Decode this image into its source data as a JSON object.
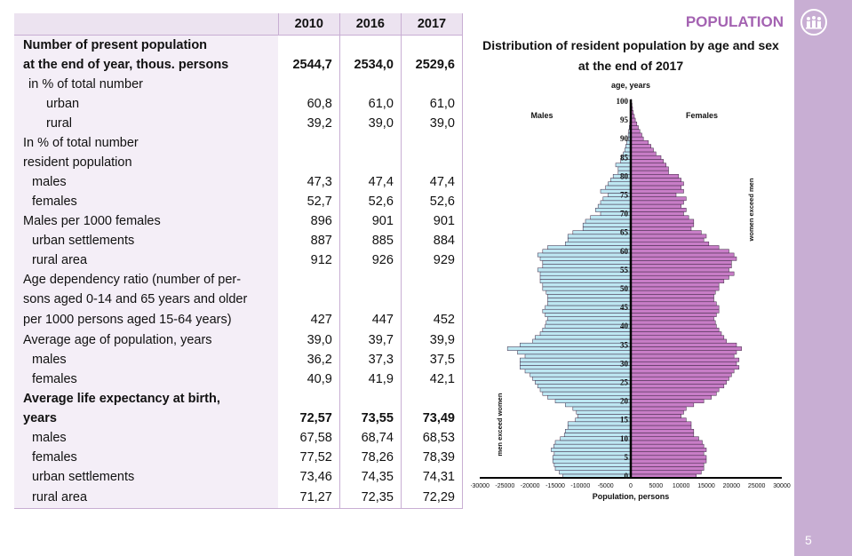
{
  "section_title": "POPULATION",
  "page_number": "5",
  "table": {
    "header": [
      "",
      "2010",
      "2016",
      "2017"
    ],
    "rows": [
      {
        "label": "Number of present population",
        "values": [
          "",
          "",
          ""
        ],
        "bold": true,
        "indent": 0
      },
      {
        "label": "at the end of year, thous. persons",
        "values": [
          "2544,7",
          "2534,0",
          "2529,6"
        ],
        "bold": true,
        "indent": 0
      },
      {
        "label": "in % of total number",
        "values": [
          "",
          "",
          ""
        ],
        "bold": false,
        "indent": 1
      },
      {
        "label": "urban",
        "values": [
          "60,8",
          "61,0",
          "61,0"
        ],
        "bold": false,
        "indent": 3
      },
      {
        "label": "rural",
        "values": [
          "39,2",
          "39,0",
          "39,0"
        ],
        "bold": false,
        "indent": 3
      },
      {
        "label": "In % of total number",
        "values": [
          "",
          "",
          ""
        ],
        "bold": false,
        "indent": 0
      },
      {
        "label": "resident population",
        "values": [
          "",
          "",
          ""
        ],
        "bold": false,
        "indent": 0
      },
      {
        "label": "males",
        "values": [
          "47,3",
          "47,4",
          "47,4"
        ],
        "bold": false,
        "indent": 2
      },
      {
        "label": "females",
        "values": [
          "52,7",
          "52,6",
          "52,6"
        ],
        "bold": false,
        "indent": 2
      },
      {
        "label": "Males per 1000 females",
        "values": [
          "896",
          "901",
          "901"
        ],
        "bold": false,
        "indent": 0
      },
      {
        "label": "urban settlements",
        "values": [
          "887",
          "885",
          "884"
        ],
        "bold": false,
        "indent": 2
      },
      {
        "label": "rural area",
        "values": [
          "912",
          "926",
          "929"
        ],
        "bold": false,
        "indent": 2
      },
      {
        "label": "Age dependency ratio (number of per-",
        "values": [
          "",
          "",
          ""
        ],
        "bold": false,
        "indent": 0
      },
      {
        "label": "sons aged 0-14 and 65 years and older",
        "values": [
          "",
          "",
          ""
        ],
        "bold": false,
        "indent": 0
      },
      {
        "label": "per 1000 persons aged 15-64 years)",
        "values": [
          "427",
          "447",
          "452"
        ],
        "bold": false,
        "indent": 0,
        "tall": true
      },
      {
        "label": "Average age of population, years",
        "values": [
          "39,0",
          "39,7",
          "39,9"
        ],
        "bold": false,
        "indent": 0
      },
      {
        "label": "males",
        "values": [
          "36,2",
          "37,3",
          "37,5"
        ],
        "bold": false,
        "indent": 2
      },
      {
        "label": "females",
        "values": [
          "40,9",
          "41,9",
          "42,1"
        ],
        "bold": false,
        "indent": 2
      },
      {
        "label": "Average life expectancy at birth,",
        "values": [
          "",
          "",
          ""
        ],
        "bold": true,
        "indent": 0
      },
      {
        "label": "years",
        "values": [
          "72,57",
          "73,55",
          "73,49"
        ],
        "bold": true,
        "indent": 0
      },
      {
        "label": "males",
        "values": [
          "67,58",
          "68,74",
          "68,53"
        ],
        "bold": false,
        "indent": 2
      },
      {
        "label": "females",
        "values": [
          "77,52",
          "78,26",
          "78,39"
        ],
        "bold": false,
        "indent": 2
      },
      {
        "label": "urban settlements",
        "values": [
          "73,46",
          "74,35",
          "74,31"
        ],
        "bold": false,
        "indent": 2
      },
      {
        "label": "rural area",
        "values": [
          "71,27",
          "72,35",
          "72,29"
        ],
        "bold": false,
        "indent": 2,
        "tall": true
      }
    ]
  },
  "chart_data": {
    "type": "bar",
    "orientation": "horizontal-pyramid",
    "title_line1": "Distribution of  resident population by age and sex",
    "title_line2": "at the end of 2017",
    "age_axis_label": "age, years",
    "xlabel": "Population, persons",
    "males_label": "Males",
    "females_label": "Females",
    "men_exceed_label": "men exceed women",
    "women_exceed_label": "women exceed men",
    "xlim": [
      -30000,
      30000
    ],
    "x_ticks": [
      -30000,
      -25000,
      -20000,
      -15000,
      -10000,
      -5000,
      0,
      5000,
      10000,
      15000,
      20000,
      25000,
      30000
    ],
    "age_ticks": [
      0,
      5,
      10,
      15,
      20,
      25,
      30,
      35,
      40,
      45,
      50,
      55,
      60,
      65,
      70,
      75,
      80,
      85,
      90,
      95,
      100
    ],
    "ages": [
      0,
      1,
      2,
      3,
      4,
      5,
      6,
      7,
      8,
      9,
      10,
      11,
      12,
      13,
      14,
      15,
      16,
      17,
      18,
      19,
      20,
      21,
      22,
      23,
      24,
      25,
      26,
      27,
      28,
      29,
      30,
      31,
      32,
      33,
      34,
      35,
      36,
      37,
      38,
      39,
      40,
      41,
      42,
      43,
      44,
      45,
      46,
      47,
      48,
      49,
      50,
      51,
      52,
      53,
      54,
      55,
      56,
      57,
      58,
      59,
      60,
      61,
      62,
      63,
      64,
      65,
      66,
      67,
      68,
      69,
      70,
      71,
      72,
      73,
      74,
      75,
      76,
      77,
      78,
      79,
      80,
      81,
      82,
      83,
      84,
      85,
      86,
      87,
      88,
      89,
      90,
      91,
      92,
      93,
      94,
      95,
      96,
      97,
      98,
      99,
      100
    ],
    "males": [
      13500,
      14200,
      15000,
      15200,
      15500,
      15500,
      15200,
      15800,
      15300,
      15000,
      14000,
      13200,
      13000,
      12500,
      12500,
      11000,
      10500,
      10800,
      11500,
      13000,
      15000,
      16500,
      17500,
      18000,
      18500,
      19000,
      19500,
      20000,
      21000,
      22000,
      22000,
      22000,
      21000,
      22500,
      24500,
      22000,
      19500,
      19000,
      18000,
      17500,
      17000,
      16800,
      16500,
      17000,
      17500,
      17000,
      16500,
      16500,
      16500,
      16800,
      17500,
      17500,
      18000,
      18000,
      18000,
      18500,
      17500,
      17500,
      18000,
      18500,
      17500,
      16500,
      13000,
      12500,
      12500,
      11500,
      9500,
      9500,
      9000,
      8000,
      6000,
      7000,
      6500,
      6000,
      5500,
      4500,
      6000,
      5000,
      4500,
      4000,
      3500,
      2500,
      2500,
      3000,
      2000,
      1800,
      1500,
      1200,
      1000,
      800,
      500,
      500,
      400,
      300,
      200,
      150,
      100,
      80,
      50,
      30,
      20
    ],
    "females": [
      13000,
      14000,
      14500,
      14500,
      15000,
      15000,
      14500,
      15000,
      14500,
      14200,
      13500,
      12500,
      12500,
      12000,
      12000,
      11000,
      10000,
      10500,
      11000,
      12500,
      14500,
      16000,
      17000,
      17500,
      18500,
      19000,
      19500,
      20000,
      20500,
      21500,
      21000,
      21500,
      20500,
      21000,
      22000,
      21000,
      19000,
      18500,
      18000,
      17500,
      17000,
      16800,
      16500,
      17000,
      17500,
      17500,
      17000,
      16500,
      16500,
      16800,
      17500,
      17500,
      18500,
      19500,
      20500,
      19500,
      20000,
      20000,
      21000,
      20500,
      19500,
      17500,
      15500,
      14500,
      15000,
      14000,
      12000,
      12500,
      12500,
      11500,
      10500,
      11000,
      10000,
      10500,
      11000,
      9000,
      10500,
      10000,
      10500,
      10000,
      9500,
      7500,
      7500,
      7000,
      6500,
      6000,
      5000,
      4500,
      4000,
      3500,
      2500,
      2200,
      1800,
      1500,
      1200,
      900,
      700,
      500,
      350,
      250,
      150
    ],
    "bar_colors": {
      "males": "#bde7f2",
      "females": "#c87dc7",
      "outline": "#3a2440"
    }
  }
}
